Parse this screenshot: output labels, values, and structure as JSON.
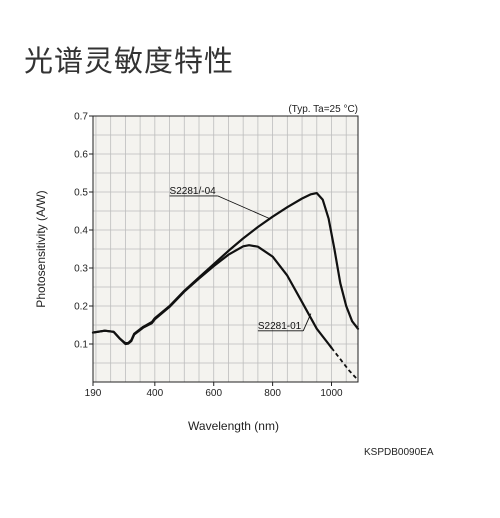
{
  "page": {
    "title": "光谱灵敏度特性",
    "document_code": "KSPDB0090EA"
  },
  "chart_data": {
    "type": "line",
    "title": "",
    "condition_note": "(Typ. Ta=25 °C)",
    "xlabel": "Wavelength (nm)",
    "ylabel": "Photosensitivity (A/W)",
    "xlim": [
      190,
      1090
    ],
    "ylim": [
      0,
      0.7
    ],
    "x_ticks": [
      190,
      400,
      600,
      800,
      1000
    ],
    "y_ticks": [
      0.1,
      0.2,
      0.3,
      0.4,
      0.5,
      0.6,
      0.7
    ],
    "x_tick_labels": [
      "190",
      "400",
      "600",
      "800",
      "1000"
    ],
    "y_tick_labels": [
      "0.1",
      "0.2",
      "0.3",
      "0.4",
      "0.5",
      "0.6",
      "0.7"
    ],
    "grid": true,
    "legend": "inline labels",
    "colors": {
      "grid": "#bdbdbd",
      "plot_bg": "#f4f3ef",
      "line": "#111111"
    },
    "series": [
      {
        "name": "S2281/-04",
        "x": [
          190,
          230,
          260,
          280,
          300,
          310,
          320,
          330,
          360,
          390,
          400,
          450,
          500,
          550,
          600,
          650,
          700,
          750,
          800,
          850,
          900,
          930,
          950,
          970,
          990,
          1010,
          1030,
          1050,
          1070,
          1090
        ],
        "y": [
          0.13,
          0.135,
          0.132,
          0.115,
          0.102,
          0.103,
          0.11,
          0.127,
          0.145,
          0.158,
          0.168,
          0.2,
          0.24,
          0.275,
          0.31,
          0.345,
          0.378,
          0.408,
          0.435,
          0.46,
          0.483,
          0.494,
          0.497,
          0.48,
          0.43,
          0.35,
          0.26,
          0.2,
          0.16,
          0.14
        ]
      },
      {
        "name": "S2281-01",
        "x": [
          190,
          230,
          260,
          280,
          300,
          310,
          320,
          330,
          360,
          390,
          400,
          450,
          500,
          550,
          600,
          650,
          700,
          720,
          750,
          800,
          850,
          900,
          950,
          990,
          1000
        ],
        "y": [
          0.13,
          0.135,
          0.132,
          0.115,
          0.1,
          0.101,
          0.108,
          0.125,
          0.143,
          0.155,
          0.165,
          0.198,
          0.238,
          0.272,
          0.305,
          0.335,
          0.357,
          0.36,
          0.356,
          0.33,
          0.28,
          0.21,
          0.14,
          0.1,
          0.09
        ]
      },
      {
        "name": "S2281-01 (dashed extension)",
        "x": [
          1000,
          1020,
          1040,
          1060,
          1090
        ],
        "y": [
          0.09,
          0.07,
          0.05,
          0.03,
          0.005
        ],
        "dashed": true
      }
    ],
    "annotations": [
      {
        "text": "S2281/-04",
        "label_x": 450,
        "label_y": 0.495,
        "arrow_to_x": 790,
        "arrow_to_y": 0.43
      },
      {
        "text": "S2281-01",
        "label_x": 750,
        "label_y": 0.14,
        "arrow_to_x": 930,
        "arrow_to_y": 0.18
      }
    ]
  }
}
